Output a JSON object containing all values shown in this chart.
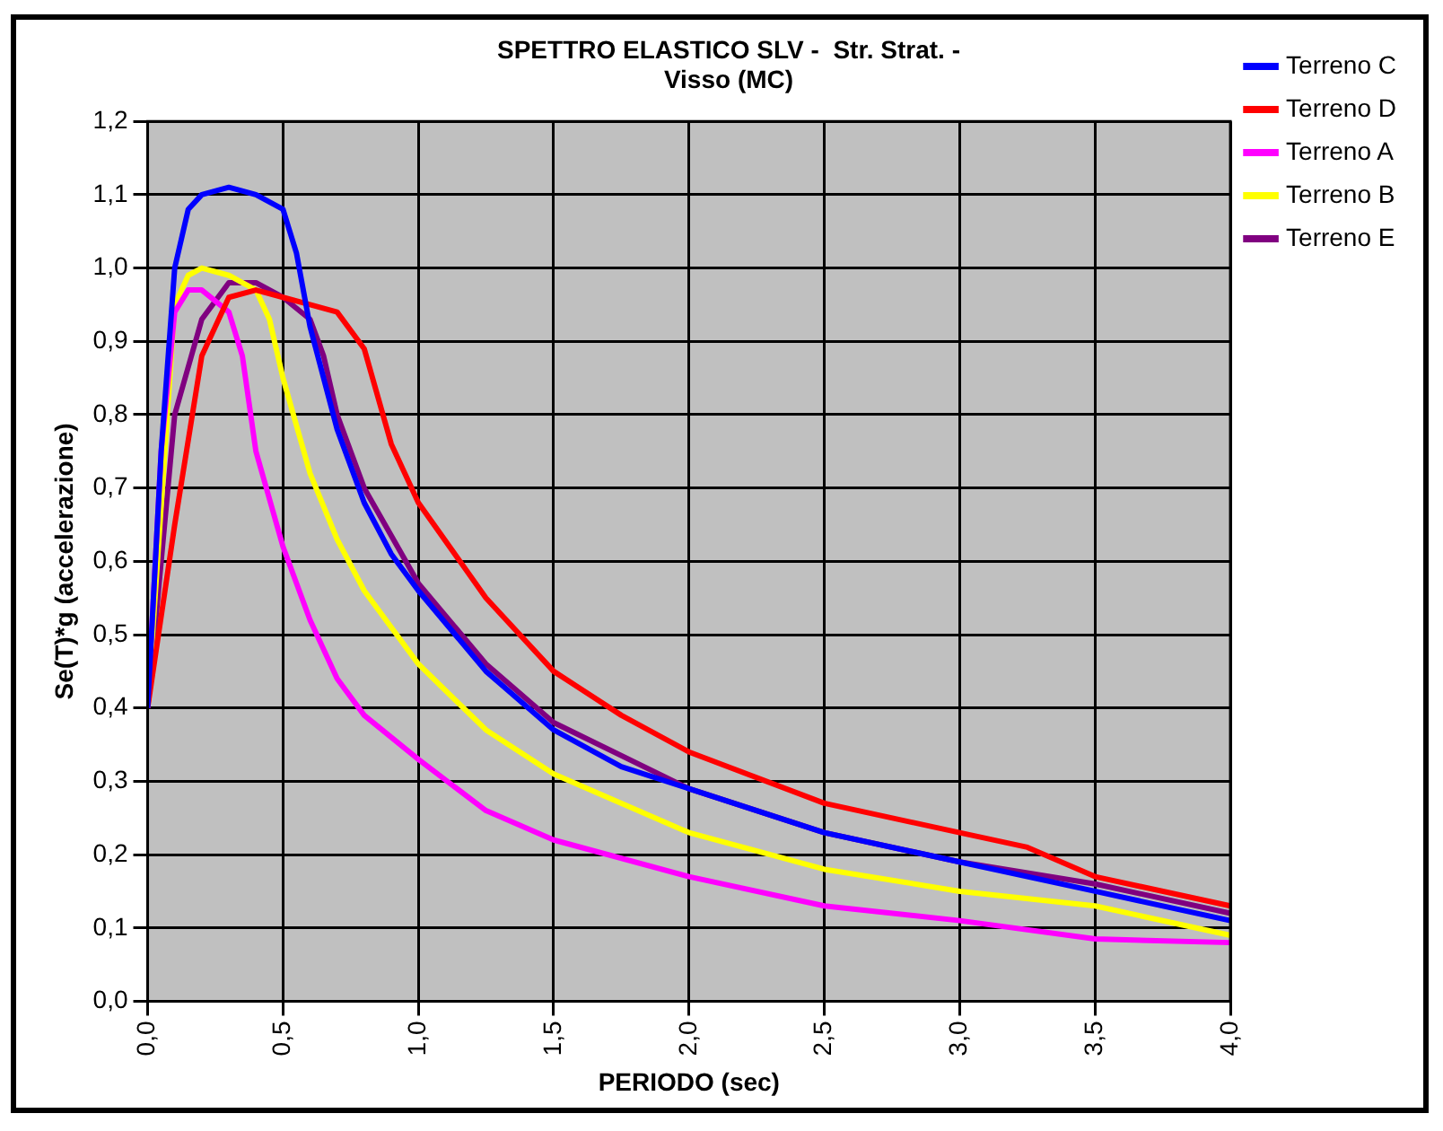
{
  "chart_data": {
    "type": "line",
    "title": "SPETTRO ELASTICO SLV -  Str. Strat. -\nVisso (MC)",
    "xlabel": "PERIODO (sec)",
    "ylabel": "Se(T)*g (accelerazione)",
    "xlim": [
      0,
      4
    ],
    "xticks": [
      {
        "value": 0,
        "label": "0,0"
      },
      {
        "value": 0.5,
        "label": "0,5"
      },
      {
        "value": 1,
        "label": "1,0"
      },
      {
        "value": 1.5,
        "label": "1,5"
      },
      {
        "value": 2,
        "label": "2,0"
      },
      {
        "value": 2.5,
        "label": "2,5"
      },
      {
        "value": 3,
        "label": "3,0"
      },
      {
        "value": 3.5,
        "label": "3,5"
      },
      {
        "value": 4,
        "label": "4,0"
      }
    ],
    "ylim": [
      0,
      1.2
    ],
    "yticks": [
      {
        "value": 0,
        "label": "0,0"
      },
      {
        "value": 0.1,
        "label": "0,1"
      },
      {
        "value": 0.2,
        "label": "0,2"
      },
      {
        "value": 0.3,
        "label": "0,3"
      },
      {
        "value": 0.4,
        "label": "0,4"
      },
      {
        "value": 0.5,
        "label": "0,5"
      },
      {
        "value": 0.6,
        "label": "0,6"
      },
      {
        "value": 0.7,
        "label": "0,7"
      },
      {
        "value": 0.8,
        "label": "0,8"
      },
      {
        "value": 0.9,
        "label": "0,9"
      },
      {
        "value": 1,
        "label": "1,0"
      },
      {
        "value": 1.1,
        "label": "1,1"
      },
      {
        "value": 1.2,
        "label": "1,2"
      }
    ],
    "grid": true,
    "legend": "right",
    "marker": "none",
    "line_style": "solid",
    "series": [
      {
        "name": "Terreno C",
        "color": "#0000ff",
        "x": [
          0,
          0.05,
          0.1,
          0.15,
          0.2,
          0.3,
          0.4,
          0.5,
          0.55,
          0.6,
          0.7,
          0.8,
          0.9,
          1,
          1.25,
          1.5,
          1.75,
          2,
          2.5,
          3,
          3.5,
          4
        ],
        "values": [
          0.4,
          0.75,
          1.0,
          1.08,
          1.1,
          1.11,
          1.1,
          1.08,
          1.02,
          0.92,
          0.78,
          0.68,
          0.61,
          0.56,
          0.45,
          0.37,
          0.32,
          0.29,
          0.23,
          0.19,
          0.15,
          0.11
        ]
      },
      {
        "name": "Terreno D",
        "color": "#ff0000",
        "x": [
          0,
          0.1,
          0.2,
          0.3,
          0.4,
          0.5,
          0.6,
          0.7,
          0.8,
          0.9,
          1,
          1.25,
          1.5,
          1.75,
          2,
          2.5,
          3,
          3.25,
          3.5,
          4
        ],
        "values": [
          0.4,
          0.65,
          0.88,
          0.96,
          0.97,
          0.96,
          0.95,
          0.94,
          0.89,
          0.76,
          0.68,
          0.55,
          0.45,
          0.39,
          0.34,
          0.27,
          0.23,
          0.21,
          0.17,
          0.13
        ]
      },
      {
        "name": "Terreno A",
        "color": "#ff00ff",
        "x": [
          0,
          0.05,
          0.1,
          0.15,
          0.2,
          0.3,
          0.35,
          0.4,
          0.5,
          0.6,
          0.7,
          0.8,
          1,
          1.25,
          1.5,
          2,
          2.5,
          3,
          3.5,
          4
        ],
        "values": [
          0.4,
          0.75,
          0.94,
          0.97,
          0.97,
          0.94,
          0.88,
          0.75,
          0.62,
          0.52,
          0.44,
          0.39,
          0.33,
          0.26,
          0.22,
          0.17,
          0.13,
          0.11,
          0.085,
          0.08
        ]
      },
      {
        "name": "Terreno B",
        "color": "#ffff00",
        "x": [
          0,
          0.1,
          0.15,
          0.2,
          0.3,
          0.4,
          0.45,
          0.5,
          0.6,
          0.7,
          0.8,
          1,
          1.25,
          1.5,
          2,
          2.5,
          3,
          3.5,
          4
        ],
        "values": [
          0.4,
          0.95,
          0.99,
          1.0,
          0.99,
          0.97,
          0.93,
          0.85,
          0.72,
          0.63,
          0.56,
          0.46,
          0.37,
          0.31,
          0.23,
          0.18,
          0.15,
          0.13,
          0.09
        ]
      },
      {
        "name": "Terreno E",
        "color": "#800080",
        "x": [
          0,
          0.1,
          0.2,
          0.3,
          0.4,
          0.5,
          0.6,
          0.65,
          0.7,
          0.8,
          1,
          1.25,
          1.5,
          2,
          2.5,
          3,
          3.5,
          4
        ],
        "values": [
          0.4,
          0.8,
          0.93,
          0.98,
          0.98,
          0.96,
          0.93,
          0.88,
          0.8,
          0.7,
          0.57,
          0.46,
          0.38,
          0.29,
          0.23,
          0.19,
          0.16,
          0.12
        ]
      }
    ]
  }
}
